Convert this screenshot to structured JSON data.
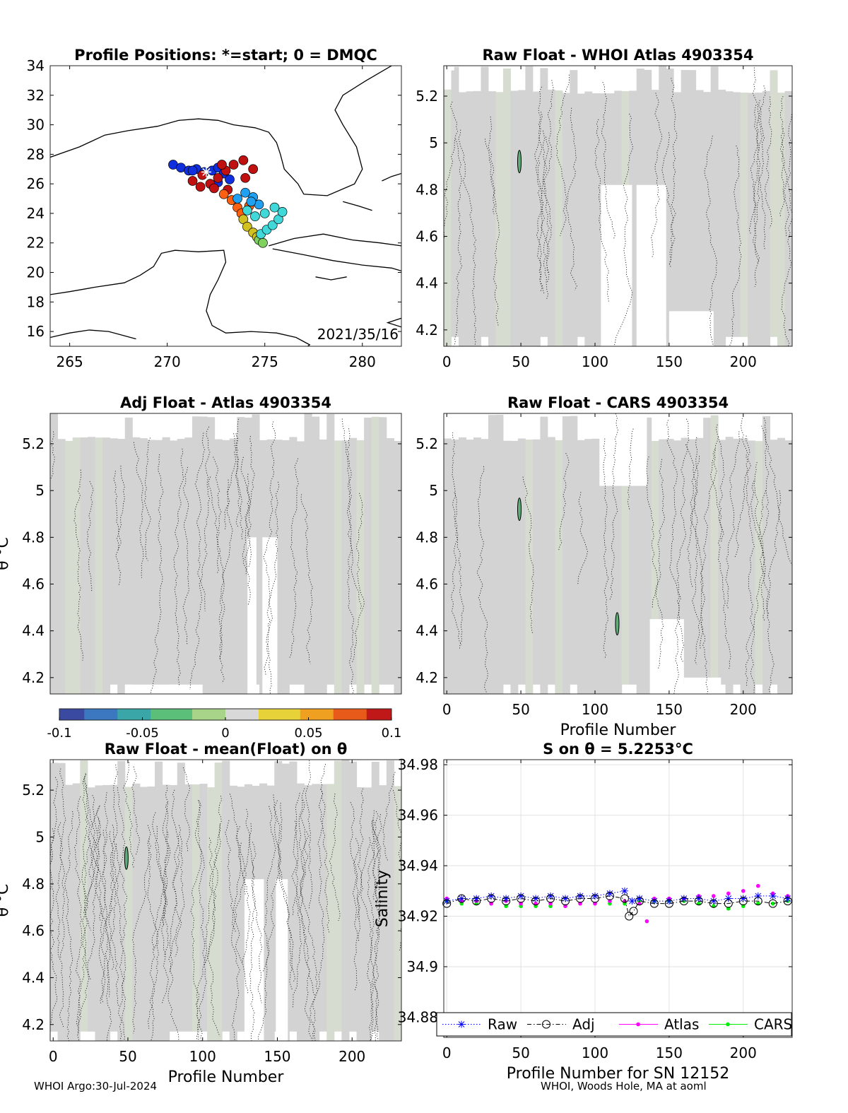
{
  "footer": {
    "left": "WHOI Argo:30-Jul-2024",
    "right": "WHOI, Woods Hole, MA at aoml"
  },
  "colors": {
    "fill_gray": "#d3d3d3",
    "raw": "#0000ff",
    "adj": "#000000",
    "atlas": "#ff00ff",
    "cars": "#00ee00"
  },
  "chart_data": [
    {
      "id": "positions",
      "type": "scatter",
      "title": "Profile Positions: *=start; 0 = DMQC",
      "xlim": [
        264,
        282
      ],
      "ylim": [
        15,
        34
      ],
      "xticks": [
        265,
        270,
        275,
        280
      ],
      "yticks": [
        16,
        18,
        20,
        22,
        24,
        26,
        28,
        30,
        32,
        34
      ],
      "annotation": "2021/35/16",
      "start": [
        272,
        26.8
      ],
      "tracks": [
        {
          "color": "#1030e0",
          "lon": [
            270.3,
            270.7,
            271.1,
            271.5,
            271.9,
            272.3,
            272.6,
            272.9,
            273.2,
            272.6,
            271.3
          ],
          "lat": [
            27.3,
            27.1,
            26.9,
            27.0,
            26.8,
            26.9,
            27.1,
            26.7,
            26.3,
            26.1,
            26.9
          ]
        },
        {
          "color": "#c01010",
          "lon": [
            271.3,
            271.7,
            272.2,
            272.6,
            273.0,
            273.4,
            273.9,
            274.4,
            274.0,
            273.1,
            272.4,
            271.8,
            272.8
          ],
          "lat": [
            26.2,
            25.8,
            26.0,
            26.4,
            26.9,
            27.3,
            27.6,
            27.0,
            26.4,
            25.6,
            25.7,
            26.6,
            27.3
          ]
        },
        {
          "color": "#ff6010",
          "lon": [
            272.9,
            273.3,
            273.6,
            273.8,
            274.2
          ],
          "lat": [
            25.3,
            24.9,
            24.4,
            24.0,
            24.5
          ]
        },
        {
          "color": "#d0c020",
          "lon": [
            273.9,
            274.1,
            274.4,
            274.6
          ],
          "lat": [
            23.6,
            23.1,
            22.7,
            22.4
          ]
        },
        {
          "color": "#80d060",
          "lon": [
            274.7,
            274.9
          ],
          "lat": [
            22.2,
            22.0
          ]
        },
        {
          "color": "#40d8d8",
          "lon": [
            274.8,
            275.1,
            275.4,
            275.7,
            275.9,
            275.5,
            275.0,
            274.5,
            274.1
          ],
          "lat": [
            22.6,
            22.9,
            23.2,
            23.6,
            24.1,
            24.4,
            24.0,
            23.8,
            24.2
          ]
        },
        {
          "color": "#20a0f0",
          "lon": [
            273.6,
            274.0,
            274.4,
            274.7,
            274.3
          ],
          "lat": [
            25.0,
            25.4,
            25.1,
            24.6,
            24.8
          ]
        }
      ]
    },
    {
      "id": "raw-atlas",
      "type": "heatmap",
      "title": "Raw Float - WHOI Atlas  4903354",
      "xlim": [
        -2,
        233
      ],
      "ylim": [
        4.13,
        5.33
      ],
      "xticks": [
        0,
        50,
        100,
        150,
        200
      ],
      "yticks": [
        4.2,
        4.4,
        4.6,
        4.8,
        5,
        5.2
      ],
      "xlabel": "",
      "ylabel": "",
      "blank_regions": [
        {
          "x": [
            -2,
            5
          ],
          "y": [
            5.31,
            5.33
          ]
        },
        {
          "x": [
            104,
            125
          ],
          "y": [
            4.13,
            4.82
          ]
        },
        {
          "x": [
            128,
            148
          ],
          "y": [
            4.13,
            4.82
          ]
        },
        {
          "x": [
            150,
            180
          ],
          "y": [
            4.13,
            4.28
          ]
        }
      ],
      "features": [
        {
          "x": 49,
          "y": 4.92
        }
      ]
    },
    {
      "id": "adj-atlas",
      "type": "heatmap",
      "title": "Adj Float - Atlas  4903354",
      "xlim": [
        -2,
        233
      ],
      "ylim": [
        4.13,
        5.33
      ],
      "xticks": [],
      "yticks": [
        4.2,
        4.4,
        4.6,
        4.8,
        5,
        5.2
      ],
      "xlabel": "",
      "ylabel": "θ °C",
      "blank_regions": [
        {
          "x": [
            130,
            136
          ],
          "y": [
            4.13,
            4.8
          ]
        },
        {
          "x": [
            140,
            150
          ],
          "y": [
            4.13,
            4.8
          ]
        },
        {
          "x": [
            48,
            100
          ],
          "y": [
            4.13,
            4.17
          ]
        }
      ],
      "features": []
    },
    {
      "id": "raw-cars",
      "type": "heatmap",
      "title": "Raw Float - CARS  4903354",
      "xlim": [
        -2,
        233
      ],
      "ylim": [
        4.13,
        5.33
      ],
      "xticks": [
        0,
        50,
        100,
        150,
        200
      ],
      "yticks": [
        4.2,
        4.4,
        4.6,
        4.8,
        5,
        5.2
      ],
      "xlabel": "Profile Number",
      "ylabel": "",
      "blank_regions": [
        {
          "x": [
            103,
            135
          ],
          "y": [
            5.02,
            5.33
          ]
        },
        {
          "x": [
            137,
            160
          ],
          "y": [
            4.13,
            4.45
          ]
        },
        {
          "x": [
            160,
            185
          ],
          "y": [
            4.13,
            4.2
          ]
        }
      ],
      "features": [
        {
          "x": 49,
          "y": 4.92
        },
        {
          "x": 115,
          "y": 4.43
        }
      ]
    },
    {
      "id": "colorbar",
      "type": "heatmap",
      "ticks": [
        "-0.1",
        "-0.05",
        "0",
        "0.05",
        "0.1"
      ],
      "range": [
        -0.1,
        0.1
      ]
    },
    {
      "id": "raw-mean",
      "type": "heatmap",
      "title": "Raw Float - mean(Float) on θ",
      "xlim": [
        -2,
        233
      ],
      "ylim": [
        4.13,
        5.33
      ],
      "xticks": [
        0,
        50,
        100,
        150,
        200
      ],
      "yticks": [
        4.2,
        4.4,
        4.6,
        4.8,
        5,
        5.2
      ],
      "xlabel": "Profile Number",
      "ylabel": "θ °C",
      "blank_regions": [
        {
          "x": [
            128,
            141
          ],
          "y": [
            4.13,
            4.82
          ]
        },
        {
          "x": [
            149,
            157
          ],
          "y": [
            4.13,
            4.82
          ]
        },
        {
          "x": [
            78,
            98
          ],
          "y": [
            4.13,
            4.17
          ]
        }
      ],
      "features": [
        {
          "x": 49,
          "y": 4.91
        }
      ]
    },
    {
      "id": "salinity",
      "type": "line",
      "title": "S on θ = 5.2253°C",
      "xlim": [
        -2,
        233
      ],
      "ylim": [
        34.872,
        34.982
      ],
      "xticks": [
        0,
        50,
        100,
        150,
        200
      ],
      "yticks": [
        34.88,
        34.9,
        34.92,
        34.94,
        34.96,
        34.98
      ],
      "ytick_labels": [
        "34.88",
        "34.9",
        "34.92",
        "34.94",
        "34.96",
        "34.98"
      ],
      "xlabel": "Profile Number for SN 12152",
      "ylabel": "Salinity",
      "legend": [
        "Raw",
        "Adj",
        "Atlas",
        "CARS"
      ],
      "legend_position": "bottom-outside",
      "series": [
        {
          "name": "Raw",
          "x": [
            0,
            10,
            20,
            30,
            40,
            50,
            60,
            70,
            80,
            90,
            100,
            110,
            120,
            125,
            130,
            140,
            150,
            160,
            170,
            180,
            190,
            200,
            210,
            220,
            230
          ],
          "y": [
            34.926,
            34.927,
            34.927,
            34.928,
            34.927,
            34.928,
            34.927,
            34.928,
            34.927,
            34.928,
            34.928,
            34.929,
            34.93,
            34.926,
            34.927,
            34.926,
            34.926,
            34.927,
            34.927,
            34.926,
            34.927,
            34.927,
            34.928,
            34.928,
            34.927
          ]
        },
        {
          "name": "Adj",
          "x": [
            0,
            10,
            20,
            30,
            40,
            50,
            60,
            70,
            80,
            90,
            100,
            110,
            120,
            123,
            126,
            130,
            140,
            150,
            160,
            170,
            180,
            190,
            200,
            210,
            220,
            230
          ],
          "y": [
            34.925,
            34.927,
            34.926,
            34.927,
            34.926,
            34.927,
            34.926,
            34.927,
            34.926,
            34.927,
            34.927,
            34.928,
            34.927,
            34.92,
            34.922,
            34.926,
            34.925,
            34.925,
            34.926,
            34.926,
            34.925,
            34.925,
            34.926,
            34.926,
            34.925,
            34.926
          ]
        },
        {
          "name": "Atlas",
          "x": [
            0,
            10,
            20,
            30,
            40,
            50,
            60,
            70,
            80,
            90,
            100,
            110,
            120,
            130,
            135,
            140,
            150,
            160,
            170,
            180,
            190,
            200,
            210,
            220,
            230
          ],
          "y": [
            34.927,
            34.926,
            34.926,
            34.925,
            34.926,
            34.925,
            34.925,
            34.925,
            34.924,
            34.925,
            34.925,
            34.926,
            34.926,
            34.925,
            34.918,
            34.927,
            34.927,
            34.927,
            34.928,
            34.928,
            34.929,
            34.93,
            34.932,
            34.929,
            34.928
          ]
        },
        {
          "name": "CARS",
          "x": [
            0,
            10,
            20,
            30,
            40,
            50,
            60,
            70,
            80,
            90,
            100,
            110,
            120,
            130,
            140,
            150,
            160,
            170,
            180,
            190,
            200,
            210,
            220,
            230
          ],
          "y": [
            34.926,
            34.925,
            34.925,
            34.925,
            34.924,
            34.924,
            34.924,
            34.924,
            34.924,
            34.925,
            34.925,
            34.925,
            34.925,
            34.926,
            34.926,
            34.926,
            34.926,
            34.925,
            34.924,
            34.923,
            34.924,
            34.925,
            34.925,
            34.926
          ]
        }
      ]
    }
  ]
}
